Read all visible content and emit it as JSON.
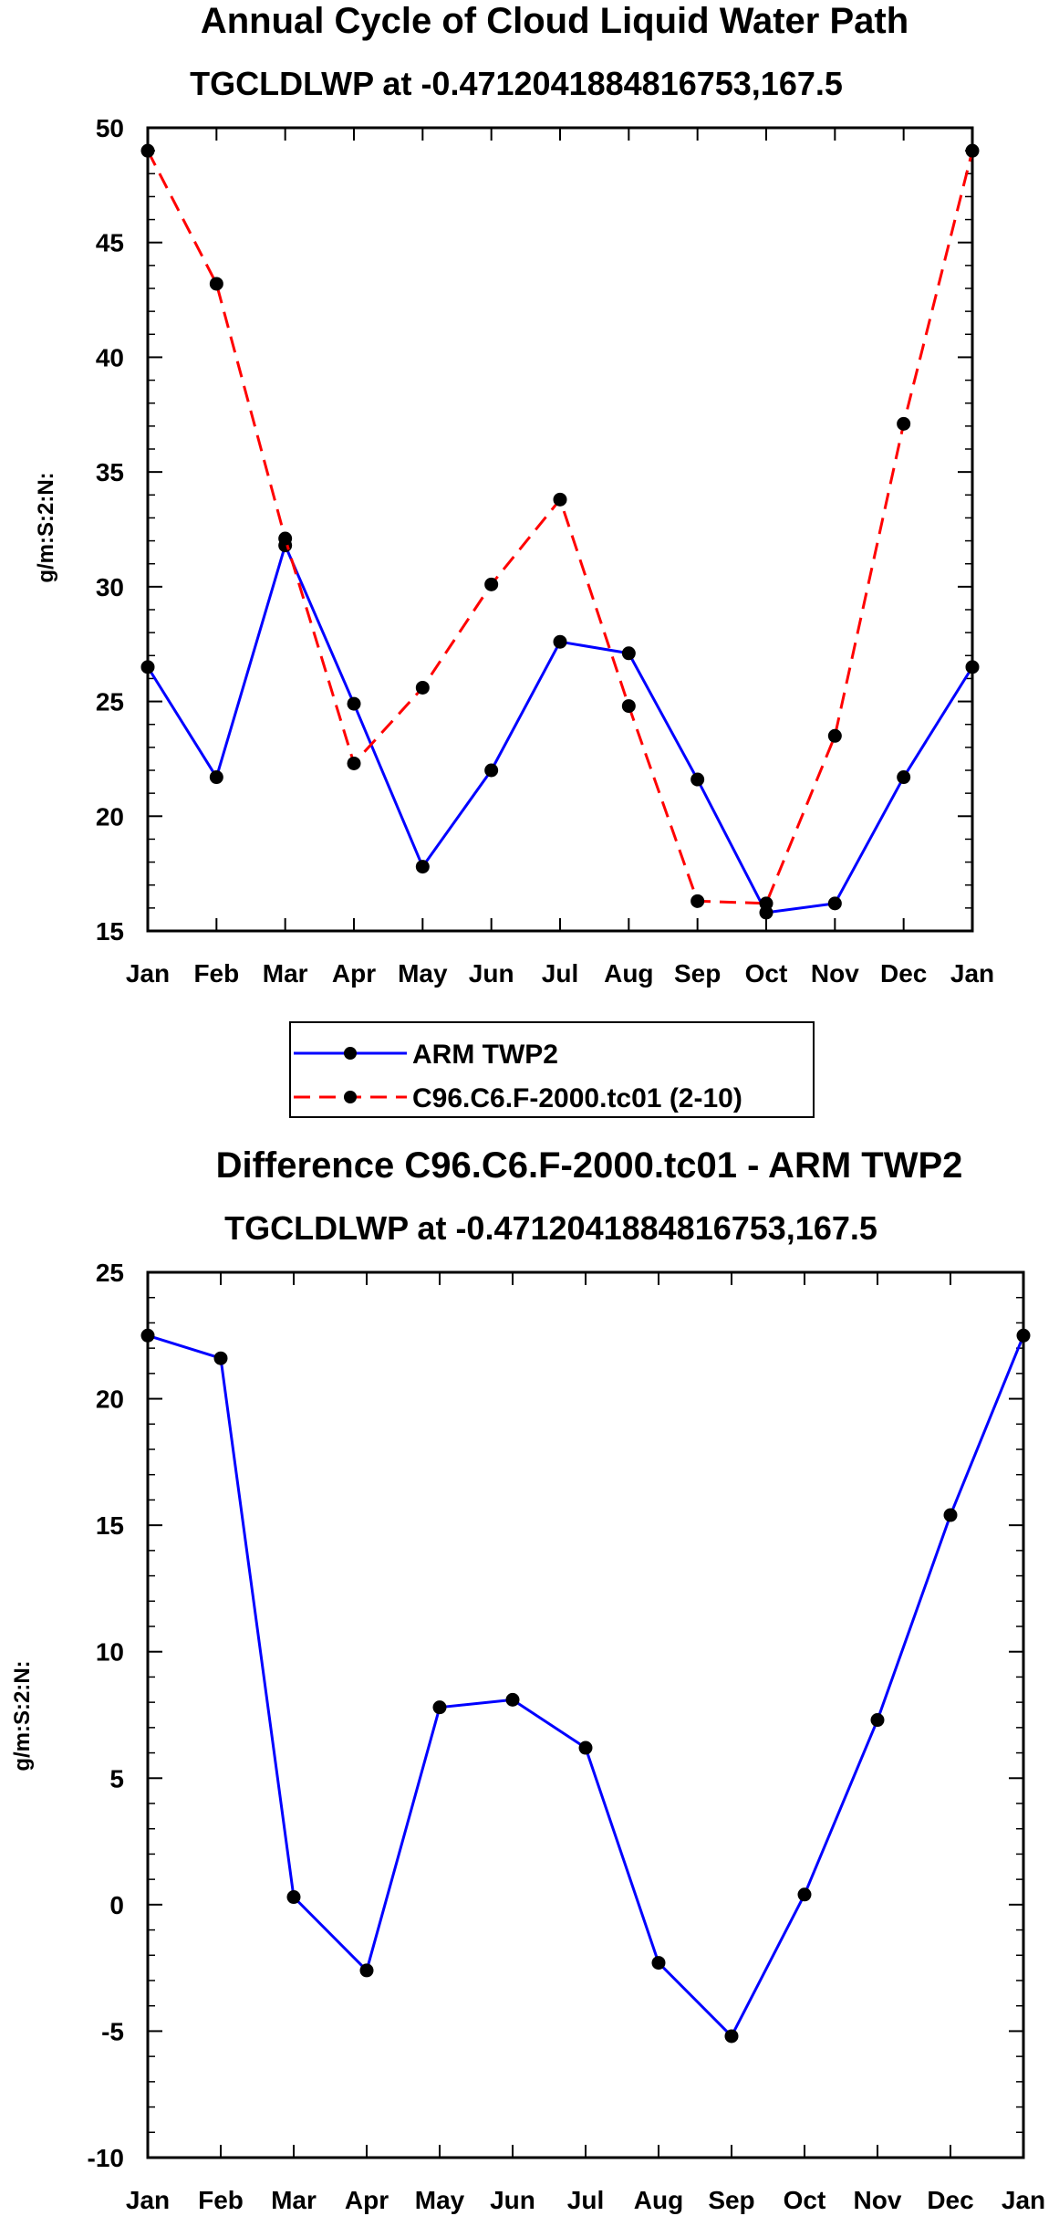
{
  "chart_data": [
    {
      "type": "line",
      "title": "Annual Cycle of Cloud Liquid Water Path",
      "subtitle": "TGCLDLWP at -0.4712041884816753,167.5",
      "xlabel": "",
      "ylabel": "g/m:S:2:N:",
      "categories": [
        "Jan",
        "Feb",
        "Mar",
        "Apr",
        "May",
        "Jun",
        "Jul",
        "Aug",
        "Sep",
        "Oct",
        "Nov",
        "Dec",
        "Jan"
      ],
      "ylim": [
        15,
        50
      ],
      "yticks": [
        15,
        20,
        25,
        30,
        35,
        40,
        45,
        50
      ],
      "legend_position": "below",
      "series": [
        {
          "name": "ARM TWP2",
          "color": "#0000ff",
          "dash": "solid",
          "values": [
            26.5,
            21.7,
            31.8,
            24.9,
            17.8,
            22.0,
            27.6,
            27.1,
            21.6,
            15.8,
            16.2,
            21.7,
            26.5
          ]
        },
        {
          "name": "C96.C6.F-2000.tc01 (2-10)",
          "color": "#ff0000",
          "dash": "dashed",
          "values": [
            49.0,
            43.2,
            32.1,
            22.3,
            25.6,
            30.1,
            33.8,
            24.8,
            16.3,
            16.2,
            23.5,
            37.1,
            49.0
          ]
        }
      ]
    },
    {
      "type": "line",
      "title": "Difference C96.C6.F-2000.tc01 - ARM TWP2",
      "subtitle": "TGCLDLWP at -0.4712041884816753,167.5",
      "xlabel": "",
      "ylabel": "g/m:S:2:N:",
      "categories": [
        "Jan",
        "Feb",
        "Mar",
        "Apr",
        "May",
        "Jun",
        "Jul",
        "Aug",
        "Sep",
        "Oct",
        "Nov",
        "Dec",
        "Jan"
      ],
      "ylim": [
        -10,
        25
      ],
      "yticks": [
        -10,
        -5,
        0,
        5,
        10,
        15,
        20,
        25
      ],
      "series": [
        {
          "name": "Difference",
          "color": "#0000ff",
          "dash": "solid",
          "values": [
            22.5,
            21.6,
            0.3,
            -2.6,
            7.8,
            8.1,
            6.2,
            -2.3,
            -5.2,
            0.4,
            7.3,
            15.4,
            22.5
          ]
        }
      ]
    }
  ]
}
